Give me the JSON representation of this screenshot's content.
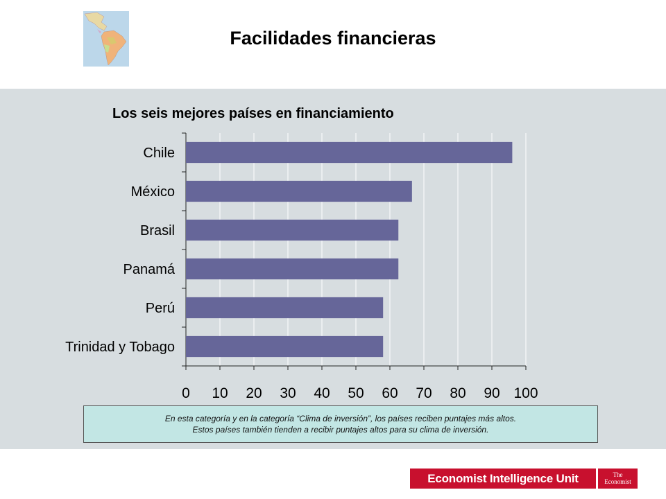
{
  "slide": {
    "title": "Facilidades financieras"
  },
  "map_icon": "latin-america-map-icon",
  "note": {
    "line1": "En esta categoría y en la categoría “Clima de inversión”, los países reciben puntajes más altos.",
    "line2": "Estos países también tienden a recibir puntajes altos para su clima de inversión."
  },
  "logos": {
    "eiu": "Economist Intelligence Unit",
    "economist_line1": "The",
    "economist_line2": "Economist"
  },
  "colors": {
    "bar": "#666699",
    "panel": "#d7dde0",
    "note_bg": "#c2e6e4",
    "brand_red": "#c8102e"
  },
  "chart_data": {
    "type": "bar",
    "orientation": "horizontal",
    "title": "Los seis mejores países en financiamiento",
    "categories": [
      "Chile",
      "México",
      "Brasil",
      "Panamá",
      "Perú",
      "Trinidad y Tobago"
    ],
    "values": [
      96,
      66.5,
      62.5,
      62.5,
      58,
      58
    ],
    "xlim": [
      0,
      100
    ],
    "xticks": [
      0,
      10,
      20,
      30,
      40,
      50,
      60,
      70,
      80,
      90,
      100
    ],
    "grid": true,
    "legend": "none",
    "xlabel": "",
    "ylabel": ""
  }
}
